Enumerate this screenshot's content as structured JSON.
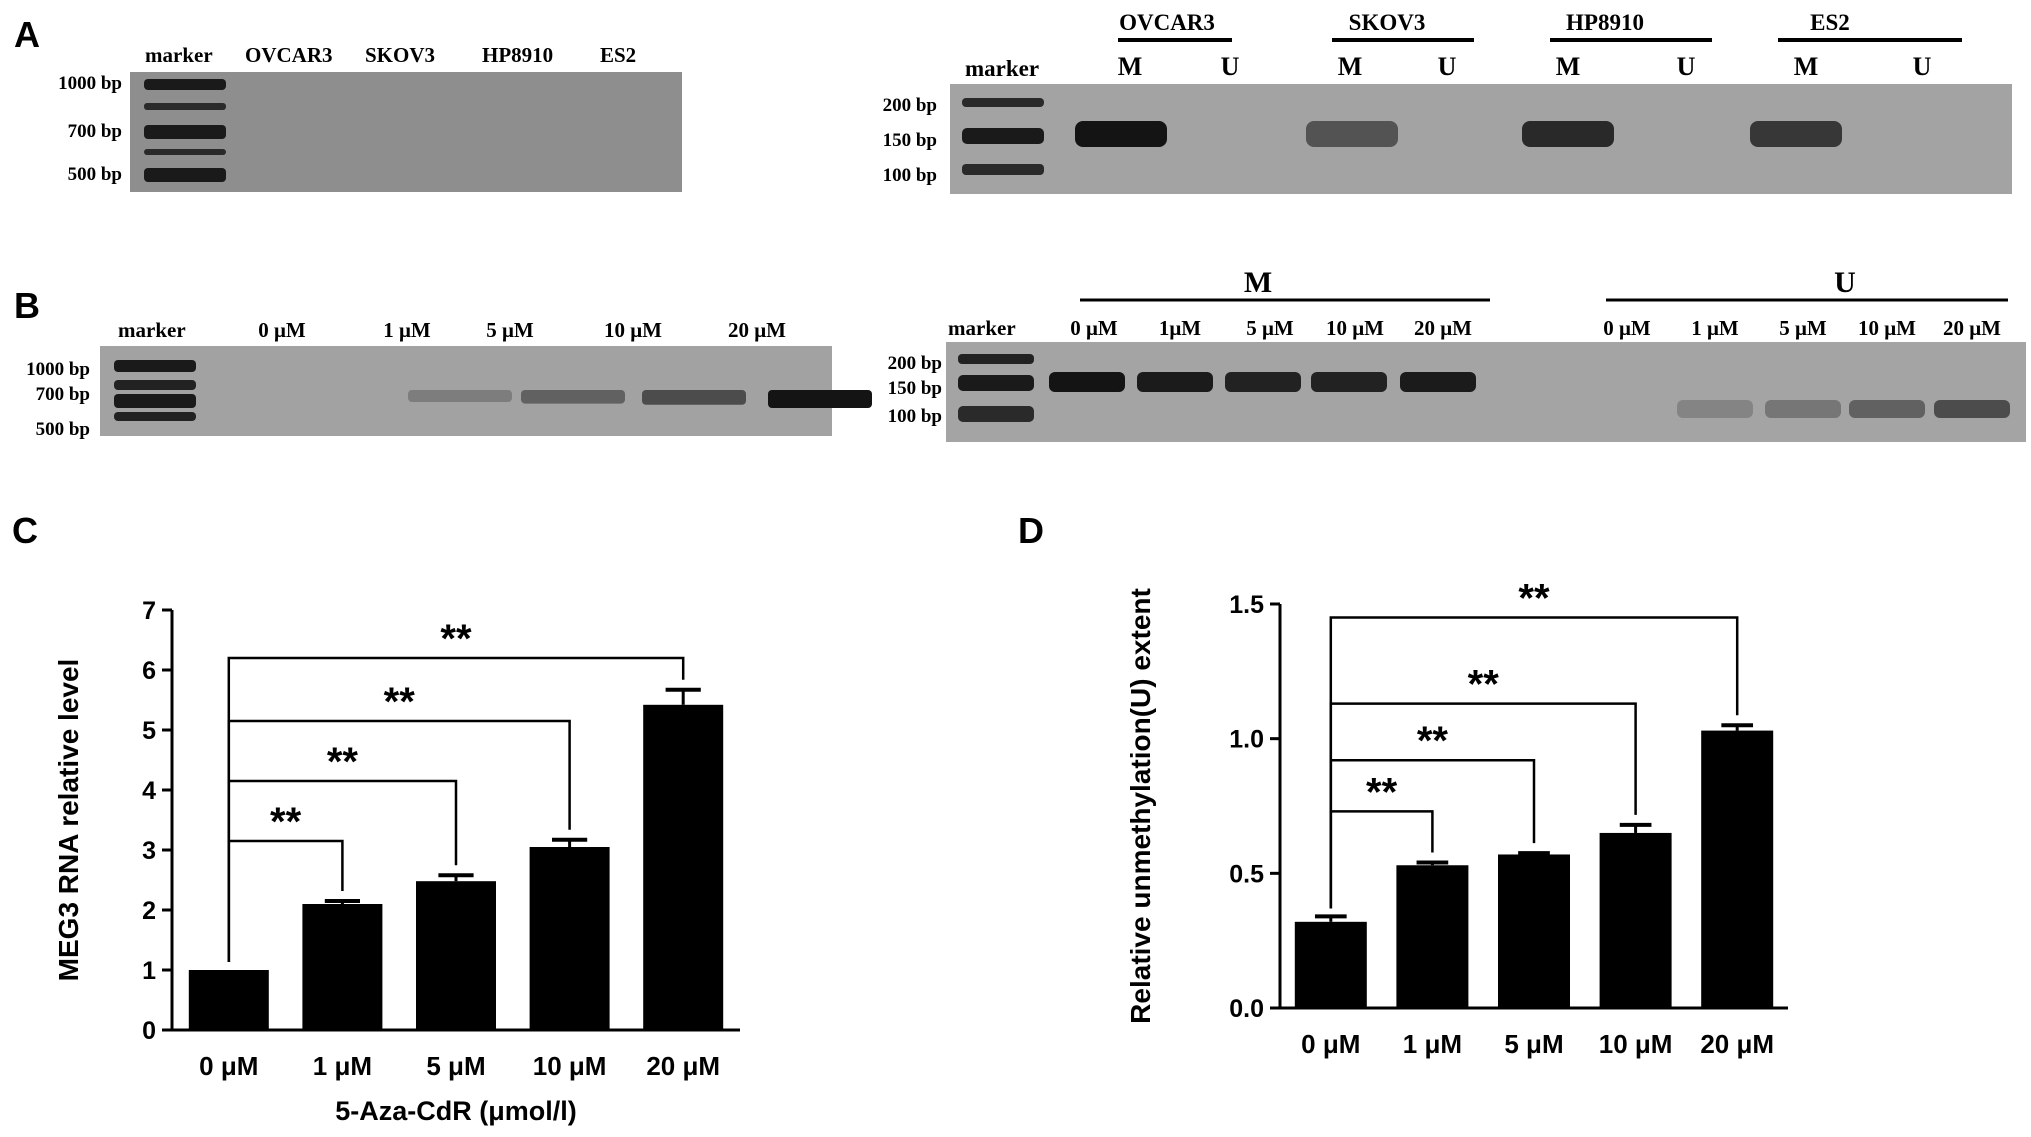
{
  "panels": {
    "A": {
      "letter": "A",
      "gel_left": {
        "lanes": [
          "marker",
          "OVCAR3",
          "SKOV3",
          "HP8910",
          "ES2"
        ],
        "sizes": [
          "1000 bp",
          "700 bp",
          "500 bp"
        ]
      },
      "gel_right": {
        "marker_label": "marker",
        "groups": [
          "OVCAR3",
          "SKOV3",
          "HP8910",
          "ES2"
        ],
        "sublanes": [
          "M",
          "U"
        ],
        "sizes": [
          "200 bp",
          "150 bp",
          "100 bp"
        ],
        "band_intensity": [
          1.0,
          0.0,
          0.55,
          0.0,
          0.85,
          0.0,
          0.75,
          0.0
        ]
      }
    },
    "B": {
      "letter": "B",
      "gel_left": {
        "lanes": [
          "marker",
          "0 μM",
          "1 μM",
          "5 μM",
          "10 μM",
          "20 μM"
        ],
        "sizes": [
          "1000 bp",
          "700 bp",
          "500 bp"
        ],
        "band_intensity": [
          0.0,
          0.25,
          0.45,
          0.6,
          1.0
        ]
      },
      "gel_right": {
        "marker_label": "marker",
        "group_M": "M",
        "group_U": "U",
        "lanes_M": [
          "0 μM",
          "1μM",
          "5 μM",
          "10 μM",
          "20 μM"
        ],
        "lanes_U": [
          "0 μM",
          "1 μM",
          "5 μM",
          "10 μM",
          "20 μM"
        ],
        "sizes": [
          "200 bp",
          "150 bp",
          "100 bp"
        ],
        "band_intensity_M": [
          1.0,
          0.95,
          0.9,
          0.9,
          0.95
        ],
        "band_intensity_U": [
          0.0,
          0.2,
          0.3,
          0.45,
          0.6
        ]
      }
    },
    "C": {
      "letter": "C"
    },
    "D": {
      "letter": "D"
    }
  },
  "chart_data": [
    {
      "panel": "C",
      "type": "bar",
      "categories": [
        "0 μM",
        "1 μM",
        "5 μM",
        "10 μM",
        "20 μM"
      ],
      "values": [
        1.0,
        2.1,
        2.48,
        3.05,
        5.42
      ],
      "errors": [
        0.0,
        0.05,
        0.1,
        0.12,
        0.25
      ],
      "xlabel": "5-Aza-CdR (μmol/l)",
      "ylabel": "MEG3 RNA relative level",
      "ylim": [
        0,
        7
      ],
      "yticks": [
        "0",
        "1",
        "2",
        "3",
        "4",
        "5",
        "6",
        "7"
      ],
      "bar_color": "#000000",
      "significance": [
        {
          "from": 0,
          "to": 1,
          "label": "**",
          "y": 3.15
        },
        {
          "from": 0,
          "to": 2,
          "label": "**",
          "y": 4.15
        },
        {
          "from": 0,
          "to": 3,
          "label": "**",
          "y": 5.15
        },
        {
          "from": 0,
          "to": 4,
          "label": "**",
          "y": 6.2
        }
      ]
    },
    {
      "panel": "D",
      "type": "bar",
      "categories": [
        "0 μM",
        "1 μM",
        "5 μM",
        "10 μM",
        "20 μM"
      ],
      "values": [
        0.32,
        0.53,
        0.57,
        0.65,
        1.03
      ],
      "errors": [
        0.02,
        0.01,
        0.005,
        0.03,
        0.02
      ],
      "xlabel": "",
      "ylabel": "Relative unmethylation(U) extent",
      "ylim": [
        0,
        1.5
      ],
      "yticks": [
        "0.0",
        "0.5",
        "1.0",
        "1.5"
      ],
      "bar_color": "#000000",
      "significance": [
        {
          "from": 0,
          "to": 1,
          "label": "**",
          "y": 0.73
        },
        {
          "from": 0,
          "to": 2,
          "label": "**",
          "y": 0.92
        },
        {
          "from": 0,
          "to": 3,
          "label": "**",
          "y": 1.13
        },
        {
          "from": 0,
          "to": 4,
          "label": "**",
          "y": 1.45
        }
      ]
    }
  ]
}
